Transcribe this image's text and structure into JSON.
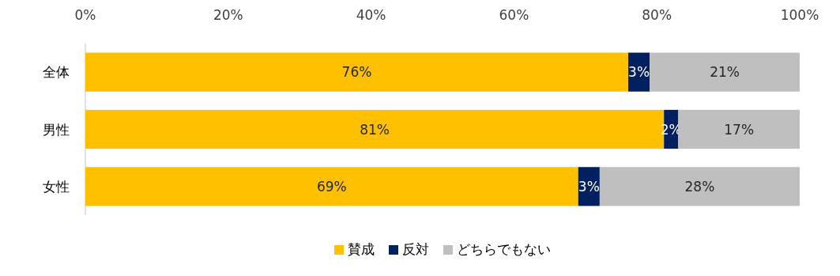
{
  "chart_data": {
    "type": "bar",
    "orientation": "horizontal",
    "stacked": true,
    "categories": [
      "全体",
      "男性",
      "女性"
    ],
    "series": [
      {
        "name": "賛成",
        "color": "#ffc000",
        "values": [
          76,
          81,
          69
        ],
        "value_labels": [
          "76%",
          "81%",
          "69%"
        ]
      },
      {
        "name": "反対",
        "color": "#002060",
        "values": [
          3,
          2,
          3
        ],
        "value_labels": [
          "3%",
          "2%",
          "3%"
        ]
      },
      {
        "name": "どちらでもない",
        "color": "#bfbfbf",
        "values": [
          21,
          17,
          28
        ],
        "value_labels": [
          "21%",
          "17%",
          "28%"
        ]
      }
    ],
    "xlim": [
      0,
      100
    ],
    "xticks": [
      {
        "value": 0,
        "label": "0%"
      },
      {
        "value": 20,
        "label": "20%"
      },
      {
        "value": 40,
        "label": "40%"
      },
      {
        "value": 60,
        "label": "60%"
      },
      {
        "value": 80,
        "label": "80%"
      },
      {
        "value": 100,
        "label": "100%"
      }
    ],
    "legend": "bottom",
    "grid": false
  }
}
